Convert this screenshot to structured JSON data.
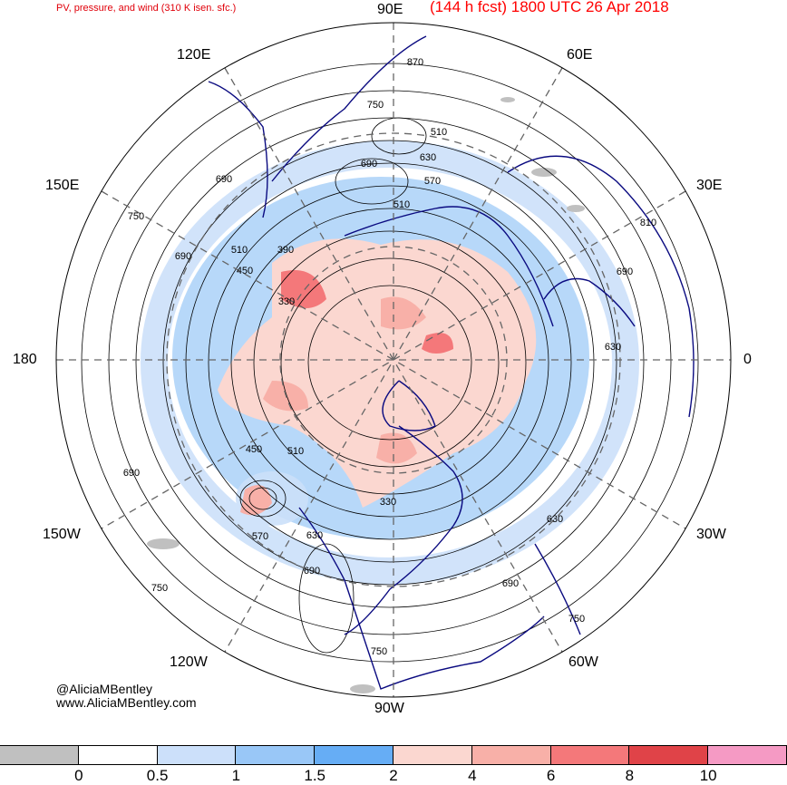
{
  "title": {
    "left": "PV, pressure, and wind (310 K isen. sfc.)",
    "right": "(144 h fcst) 1800 UTC 26 Apr 2018"
  },
  "lon_labels": {
    "n90e": "90E",
    "n120e": "120E",
    "n60e": "60E",
    "n150e": "150E",
    "n30e": "30E",
    "n180": "180",
    "n0": "0",
    "n150w": "150W",
    "n30w": "30W",
    "n120w": "120W",
    "n60w": "60W",
    "n90w": "90W"
  },
  "contour_labels": [
    "870",
    "750",
    "510",
    "630",
    "690",
    "570",
    "510",
    "690",
    "390",
    "450",
    "510",
    "330",
    "750",
    "690",
    "810",
    "690",
    "630",
    "450",
    "510",
    "690",
    "330",
    "570",
    "630",
    "630",
    "690",
    "750",
    "750",
    "690",
    "750"
  ],
  "credits": {
    "twitter": "@AliciaMBentley",
    "website": "www.AliciaMBentley.com"
  },
  "colorbar": {
    "colors": [
      "#c0c0c0",
      "#ffffff",
      "#cce0fa",
      "#99c7f7",
      "#66adf5",
      "#fbd7d0",
      "#f8b0a8",
      "#f4787a",
      "#e04348",
      "#f59ac4"
    ],
    "ticks": [
      "0",
      "0.5",
      "1",
      "1.5",
      "2",
      "4",
      "6",
      "8",
      "10"
    ]
  }
}
